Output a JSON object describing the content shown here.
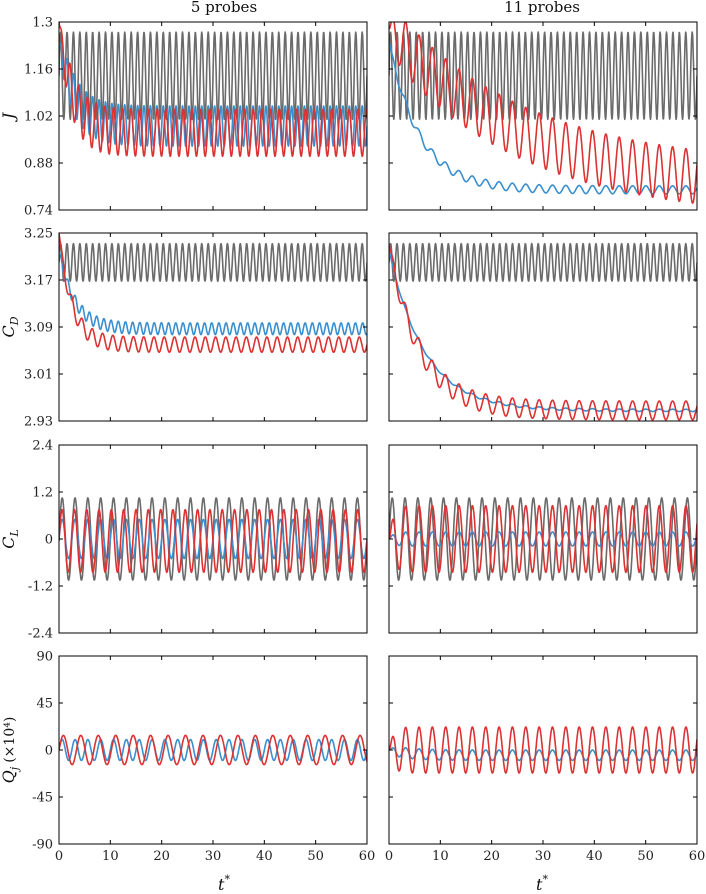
{
  "columns": [
    "5 probes",
    "11 probes"
  ],
  "xlabel": "t",
  "xlabel_sup": "*",
  "xticks": [
    0,
    10,
    20,
    30,
    40,
    50,
    60
  ],
  "xlim": [
    0,
    60
  ],
  "colors": {
    "baseline": "#6b6b6b",
    "blue": "#3a8fcf",
    "red": "#dc3232",
    "frame": "#000000"
  },
  "rows": [
    {
      "key": "J",
      "ylabel": "J",
      "ylabel_sub": "",
      "ylabel_suffix": "",
      "ylim": [
        0.74,
        1.3
      ],
      "yticks": [
        "0.74",
        "0.88",
        "1.02",
        "1.16",
        "1.3"
      ]
    },
    {
      "key": "CD",
      "ylabel": "C",
      "ylabel_sub": "D",
      "ylabel_suffix": "",
      "ylim": [
        2.93,
        3.25
      ],
      "yticks": [
        "2.93",
        "3.01",
        "3.09",
        "3.17",
        "3.25"
      ]
    },
    {
      "key": "CL",
      "ylabel": "C",
      "ylabel_sub": "L",
      "ylabel_suffix": "",
      "ylim": [
        -2.4,
        2.4
      ],
      "yticks": [
        "-2.4",
        "-1.2",
        "0",
        "1.2",
        "2.4"
      ]
    },
    {
      "key": "Qj",
      "ylabel": "Q",
      "ylabel_sub": "j",
      "ylabel_suffix": "(×10⁴)",
      "ylim": [
        -90,
        90
      ],
      "yticks": [
        "-90",
        "-45",
        "0",
        "45",
        "90"
      ]
    }
  ],
  "chart_data": {
    "type": "line",
    "title": "",
    "x_range": [
      0,
      60
    ],
    "sampling": "approximate traces read from figure; values in data units",
    "panels": [
      {
        "row": "J",
        "column": "5 probes",
        "series": [
          {
            "name": "baseline",
            "color": "#6b6b6b",
            "model": "oscillation",
            "mean": 1.14,
            "amplitude": 0.13,
            "period": 1.25
          },
          {
            "name": "blue",
            "color": "#3a8fcf",
            "model": "decaying_oscillation",
            "start": 1.24,
            "end_mean": 0.99,
            "tau": 3.0,
            "amplitude": 0.06,
            "period": 1.25
          },
          {
            "name": "red",
            "color": "#dc3232",
            "model": "decaying_oscillation",
            "start": 1.3,
            "end_mean": 0.97,
            "tau": 2.5,
            "amplitude": 0.07,
            "period": 1.7
          }
        ]
      },
      {
        "row": "J",
        "column": "11 probes",
        "series": [
          {
            "name": "baseline",
            "color": "#6b6b6b",
            "model": "oscillation",
            "mean": 1.14,
            "amplitude": 0.13,
            "period": 1.25
          },
          {
            "name": "blue",
            "color": "#3a8fcf",
            "model": "decaying_oscillation",
            "start": 1.24,
            "end_mean": 0.8,
            "tau": 6.0,
            "amplitude": 0.012,
            "period": 2.6
          },
          {
            "name": "red",
            "color": "#dc3232",
            "model": "decaying_oscillation",
            "start": 1.28,
            "end_mean": 0.79,
            "tau": 26.0,
            "amplitude": 0.08,
            "period": 2.6
          }
        ]
      },
      {
        "row": "CD",
        "column": "5 probes",
        "series": [
          {
            "name": "baseline",
            "color": "#6b6b6b",
            "model": "oscillation",
            "mean": 3.2,
            "amplitude": 0.032,
            "period": 1.25
          },
          {
            "name": "blue",
            "color": "#3a8fcf",
            "model": "decaying_oscillation",
            "start": 3.22,
            "end_mean": 3.087,
            "tau": 3.0,
            "amplitude": 0.01,
            "period": 1.4
          },
          {
            "name": "red",
            "color": "#dc3232",
            "model": "decaying_oscillation",
            "start": 3.25,
            "end_mean": 3.06,
            "tau": 2.5,
            "amplitude": 0.013,
            "period": 2.0
          }
        ]
      },
      {
        "row": "CD",
        "column": "11 probes",
        "series": [
          {
            "name": "baseline",
            "color": "#6b6b6b",
            "model": "oscillation",
            "mean": 3.2,
            "amplitude": 0.032,
            "period": 1.25
          },
          {
            "name": "blue",
            "color": "#3a8fcf",
            "model": "decaying_oscillation",
            "start": 3.22,
            "end_mean": 2.948,
            "tau": 7.0,
            "amplitude": 0.002,
            "period": 2.6
          },
          {
            "name": "red",
            "color": "#dc3232",
            "model": "decaying_oscillation",
            "start": 3.23,
            "end_mean": 2.948,
            "tau": 6.0,
            "amplitude": 0.016,
            "period": 2.6
          }
        ]
      },
      {
        "row": "CL",
        "column": "5 probes",
        "series": [
          {
            "name": "baseline",
            "color": "#6b6b6b",
            "model": "oscillation",
            "mean": 0.0,
            "amplitude": 1.05,
            "period": 2.5
          },
          {
            "name": "blue",
            "color": "#3a8fcf",
            "model": "oscillation",
            "mean": 0.0,
            "amplitude": 0.5,
            "period": 2.5
          },
          {
            "name": "red",
            "color": "#dc3232",
            "model": "oscillation",
            "mean": -0.05,
            "amplitude": 0.8,
            "period": 2.4
          }
        ]
      },
      {
        "row": "CL",
        "column": "11 probes",
        "series": [
          {
            "name": "baseline",
            "color": "#6b6b6b",
            "model": "oscillation",
            "mean": 0.0,
            "amplitude": 1.05,
            "period": 2.5
          },
          {
            "name": "blue",
            "color": "#3a8fcf",
            "model": "decaying_oscillation",
            "start": 0.0,
            "end_mean": 0.0,
            "tau": 5.0,
            "amplitude": 0.18,
            "period": 2.6
          },
          {
            "name": "red",
            "color": "#dc3232",
            "model": "decaying_oscillation",
            "start": 0.0,
            "end_mean": 0.0,
            "tau": 5.0,
            "amplitude": 0.85,
            "period": 2.6
          }
        ]
      },
      {
        "row": "Qj",
        "column": "5 probes",
        "series": [
          {
            "name": "blue",
            "color": "#3a8fcf",
            "model": "oscillation",
            "mean": 0.0,
            "amplitude": 10.0,
            "period": 2.5
          },
          {
            "name": "red",
            "color": "#dc3232",
            "model": "oscillation",
            "mean": 0.0,
            "amplitude": 14.0,
            "period": 3.4
          }
        ]
      },
      {
        "row": "Qj",
        "column": "11 probes",
        "series": [
          {
            "name": "blue",
            "color": "#3a8fcf",
            "model": "decaying_oscillation",
            "start": 0.0,
            "end_mean": -5.0,
            "tau": 4.0,
            "amplitude": 5.0,
            "period": 2.6
          },
          {
            "name": "red",
            "color": "#dc3232",
            "model": "decaying_oscillation",
            "start": 0.0,
            "end_mean": 0.0,
            "tau": 6.0,
            "amplitude": 22.0,
            "period": 2.6
          }
        ]
      }
    ]
  }
}
